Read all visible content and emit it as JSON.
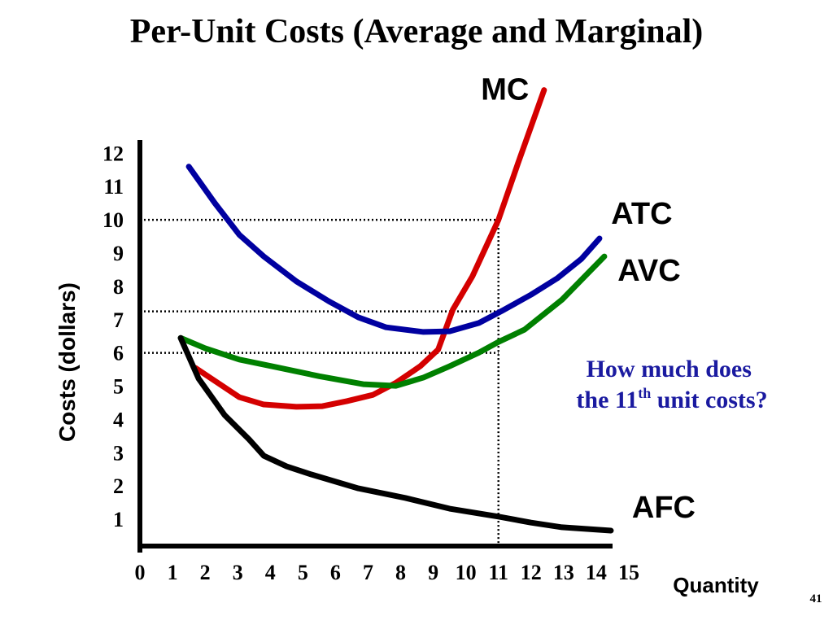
{
  "chart_data": {
    "type": "line",
    "title": "Per-Unit Costs (Average and Marginal)",
    "x_label": "Quantity",
    "y_label": "Costs (dollars)",
    "xlim": [
      0,
      15
    ],
    "xticks": [
      0,
      1,
      2,
      3,
      4,
      5,
      6,
      7,
      8,
      9,
      10,
      11,
      12,
      13,
      14,
      15
    ],
    "ylim": [
      0,
      12.4
    ],
    "yticks": [
      1,
      2,
      3,
      4,
      5,
      6,
      7,
      8,
      9,
      10,
      11,
      12
    ],
    "series": [
      {
        "name": "MC",
        "color": "#d40000",
        "x": [
          1.7,
          3.05,
          3.8,
          4.8,
          5.6,
          6.35,
          7.15,
          7.85,
          8.6,
          9.15,
          9.6,
          10.2,
          11,
          11.6,
          12.4
        ],
        "values": [
          5.55,
          4.67,
          4.45,
          4.38,
          4.4,
          4.55,
          4.74,
          5.1,
          5.6,
          6.1,
          7.3,
          8.3,
          10,
          11.7,
          13.9
        ]
      },
      {
        "name": "ATC",
        "color": "#0000a0",
        "x": [
          1.5,
          2.3,
          3.05,
          3.8,
          4.8,
          5.8,
          6.7,
          7.55,
          8.7,
          9.5,
          10.4,
          11.1,
          12,
          12.8,
          13.55,
          14.1
        ],
        "values": [
          11.6,
          10.5,
          9.55,
          8.9,
          8.15,
          7.55,
          7.07,
          6.77,
          6.63,
          6.65,
          6.9,
          7.26,
          7.75,
          8.24,
          8.83,
          9.44
        ]
      },
      {
        "name": "AVC",
        "color": "#008000",
        "x": [
          1.25,
          2,
          3.05,
          4.05,
          5.5,
          6.85,
          7.85,
          8.7,
          9.5,
          10.4,
          11,
          11.8,
          12.95,
          14.25
        ],
        "values": [
          6.45,
          6.14,
          5.8,
          5.6,
          5.3,
          5.06,
          5.01,
          5.26,
          5.6,
          6.01,
          6.33,
          6.7,
          7.6,
          8.9
        ]
      },
      {
        "name": "AFC",
        "color": "#000000",
        "x": [
          1.25,
          1.8,
          2.6,
          3.35,
          3.8,
          4.5,
          5.25,
          6.7,
          8.15,
          9.5,
          11,
          12,
          12.95,
          14.45
        ],
        "values": [
          6.45,
          5.23,
          4.13,
          3.4,
          2.91,
          2.59,
          2.35,
          1.93,
          1.64,
          1.32,
          1.08,
          0.9,
          0.76,
          0.66
        ]
      }
    ],
    "guides": {
      "x": 11,
      "y": [
        10,
        7.25,
        6
      ]
    },
    "annotation": [
      "How much does",
      "the 11",
      "th",
      " unit costs?"
    ],
    "page_number": "41"
  }
}
